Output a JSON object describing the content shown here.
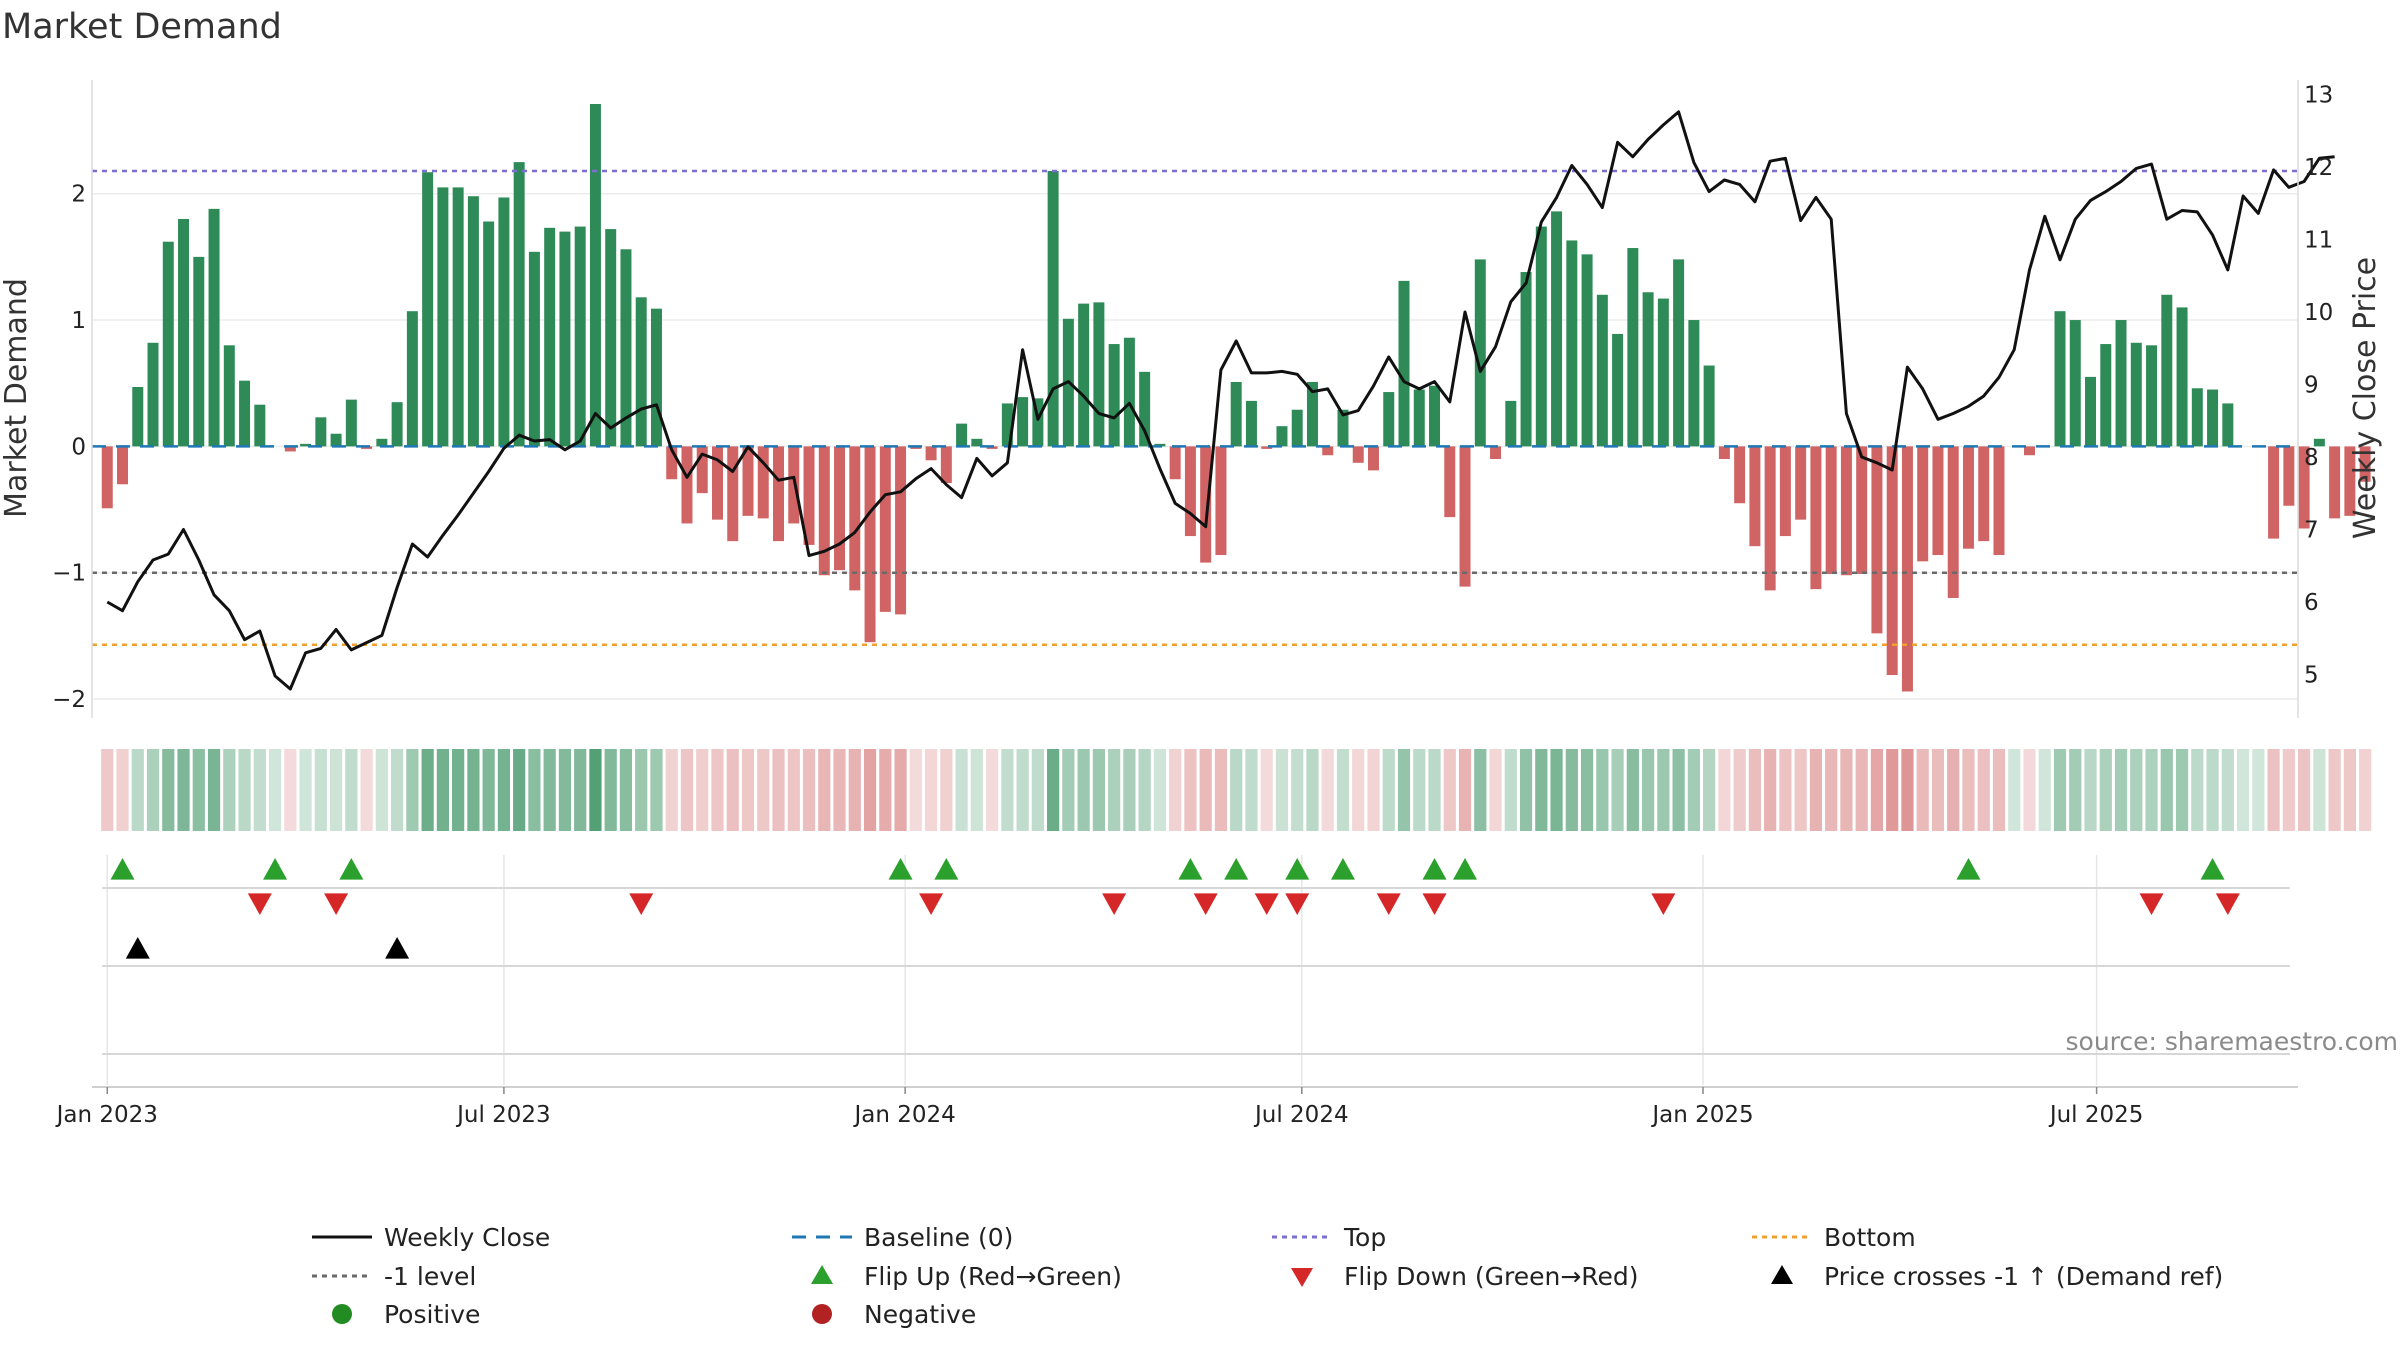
{
  "title": "Market Demand",
  "source": "source: sharemaestro.com",
  "chart_data": {
    "type": "bar+line",
    "title": "Market Demand",
    "ylabel_left": "Market Demand",
    "ylabel_right": "Weekly Close Price",
    "ylim_left": [
      -2.15,
      2.9
    ],
    "ylim_right": [
      4.4,
      13.2
    ],
    "yticks_left": [
      -2,
      -1,
      0,
      1,
      2
    ],
    "yticks_right": [
      5,
      6,
      7,
      8,
      9,
      10,
      11,
      12,
      13
    ],
    "x_range_weeks": [
      -1.0,
      143.6
    ],
    "x_ticks": [
      {
        "label": "Jan 2023",
        "week": 0
      },
      {
        "label": "Jul 2023",
        "week": 26
      },
      {
        "label": "Jan 2024",
        "week": 52.3
      },
      {
        "label": "Jul 2024",
        "week": 78.3
      },
      {
        "label": "Jan 2025",
        "week": 104.6
      },
      {
        "label": "Jul 2025",
        "week": 130.4
      }
    ],
    "reference_lines": {
      "top": 2.18,
      "minus_one": -1.0,
      "bottom": -1.57,
      "baseline": 0
    },
    "demand": [
      -0.49,
      -0.3,
      0.47,
      0.82,
      1.62,
      1.8,
      1.5,
      1.88,
      0.8,
      0.52,
      0.33,
      0.0,
      -0.04,
      0.02,
      0.23,
      0.1,
      0.37,
      -0.02,
      0.06,
      0.35,
      1.07,
      2.17,
      2.05,
      2.05,
      1.98,
      1.78,
      1.97,
      2.25,
      1.54,
      1.73,
      1.7,
      1.74,
      2.71,
      1.72,
      1.56,
      1.18,
      1.09,
      -0.26,
      -0.61,
      -0.37,
      -0.58,
      -0.75,
      -0.55,
      -0.57,
      -0.75,
      -0.61,
      -0.78,
      -1.02,
      -0.98,
      -1.14,
      -1.55,
      -1.31,
      -1.33,
      -0.02,
      -0.11,
      -0.29,
      0.18,
      0.06,
      -0.02,
      0.34,
      0.39,
      0.38,
      2.18,
      1.01,
      1.13,
      1.14,
      0.81,
      0.86,
      0.59,
      0.02,
      -0.26,
      -0.71,
      -0.92,
      -0.86,
      0.51,
      0.36,
      -0.02,
      0.16,
      0.29,
      0.51,
      -0.07,
      0.29,
      -0.13,
      -0.19,
      0.43,
      1.31,
      0.45,
      0.48,
      -0.56,
      -1.11,
      1.48,
      -0.1,
      0.36,
      1.38,
      1.74,
      1.86,
      1.63,
      1.52,
      1.2,
      0.89,
      1.57,
      1.22,
      1.17,
      1.48,
      1.0,
      0.64,
      -0.1,
      -0.45,
      -0.79,
      -1.14,
      -0.71,
      -0.58,
      -1.13,
      -1.01,
      -1.02,
      -1.01,
      -1.48,
      -1.81,
      -1.94,
      -0.91,
      -0.86,
      -1.2,
      -0.81,
      -0.75,
      -0.86,
      0.0,
      -0.07,
      0.0,
      1.07,
      1.0,
      0.55,
      0.81,
      1.0,
      0.82,
      0.8,
      1.2,
      1.1,
      0.46,
      0.45,
      0.34,
      0.0,
      0.0,
      -0.73,
      -0.47,
      -0.65,
      0.06,
      -0.57,
      -0.55,
      -0.28
    ],
    "price": [
      6.0,
      5.88,
      6.28,
      6.58,
      6.66,
      7.0,
      6.58,
      6.1,
      5.88,
      5.48,
      5.6,
      4.98,
      4.8,
      5.3,
      5.36,
      5.62,
      5.34,
      5.44,
      5.54,
      6.2,
      6.8,
      6.62,
      6.92,
      7.2,
      7.5,
      7.8,
      8.12,
      8.3,
      8.22,
      8.24,
      8.1,
      8.22,
      8.6,
      8.4,
      8.54,
      8.66,
      8.72,
      8.1,
      7.72,
      8.04,
      7.96,
      7.8,
      8.14,
      7.92,
      7.68,
      7.72,
      6.64,
      6.7,
      6.8,
      6.96,
      7.24,
      7.48,
      7.52,
      7.7,
      7.84,
      7.62,
      7.44,
      7.98,
      7.74,
      7.92,
      9.48,
      8.52,
      8.94,
      9.04,
      8.84,
      8.6,
      8.54,
      8.74,
      8.36,
      7.84,
      7.36,
      7.22,
      7.04,
      9.2,
      9.6,
      9.16,
      9.16,
      9.18,
      9.14,
      8.9,
      8.94,
      8.58,
      8.64,
      8.98,
      9.38,
      9.04,
      8.94,
      9.04,
      8.76,
      10.0,
      9.18,
      9.52,
      10.14,
      10.4,
      11.24,
      11.58,
      12.02,
      11.76,
      11.44,
      12.34,
      12.14,
      12.38,
      12.58,
      12.76,
      12.06,
      11.66,
      11.82,
      11.76,
      11.52,
      12.08,
      12.12,
      11.26,
      11.58,
      11.28,
      8.6,
      8.0,
      7.92,
      7.82,
      9.24,
      8.94,
      8.52,
      8.6,
      8.7,
      8.84,
      9.1,
      9.48,
      10.58,
      11.32,
      10.72,
      11.28,
      11.54,
      11.66,
      11.8,
      11.98,
      12.04,
      11.28,
      11.4,
      11.38,
      11.06,
      10.58,
      11.6,
      11.36,
      11.96,
      11.72,
      11.8,
      12.12,
      12.14
    ],
    "flip_up_weeks": [
      1,
      11,
      16,
      52,
      55,
      71,
      74,
      78,
      81,
      87,
      89,
      122,
      138
    ],
    "flip_down_weeks": [
      10,
      15,
      35,
      54,
      66,
      72,
      76,
      78,
      84,
      87,
      102,
      134,
      139
    ],
    "price_cross_weeks": [
      2,
      19
    ],
    "legend": [
      [
        "Weekly Close",
        "Baseline (0)",
        "Top",
        "Bottom"
      ],
      [
        "-1 level",
        "Flip Up (Red→Green)",
        "Flip Down (Green→Red)",
        "Price crosses -1 ↑ (Demand ref)"
      ],
      [
        "Positive",
        "Negative"
      ]
    ]
  },
  "colors": {
    "positive": "#2e8b57",
    "negative": "#cd5c5c",
    "price_line": "#111111",
    "baseline": "#1f77b4",
    "top": "#7b6fd0",
    "minus_one": "#6a6a6a",
    "bottom": "#f0a030",
    "flip_up": "#2ca02c",
    "flip_down": "#d62728",
    "cross": "#000000",
    "legend_positive": "#228b22",
    "legend_negative": "#b22222"
  }
}
